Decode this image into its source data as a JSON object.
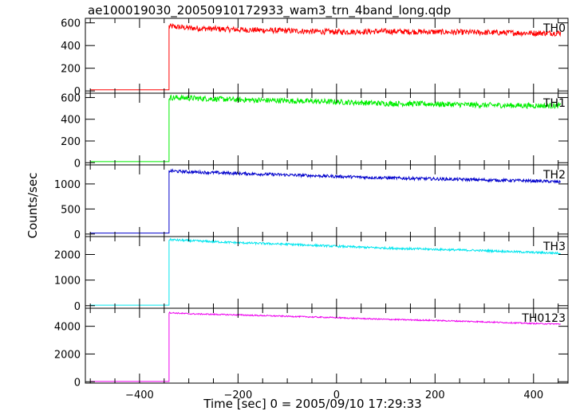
{
  "chart_data": {
    "type": "line",
    "title": "ae100019030_20050910172933_wam3_trn_4band_long.qdp",
    "xlabel": "Time [sec] 0 = 2005/09/10 17:29:33",
    "ylabel": "Counts/sec",
    "xlim": [
      -510,
      470
    ],
    "xticks": [
      -400,
      -200,
      0,
      200,
      400
    ],
    "xtick_labels": [
      "−400",
      "−200",
      "0",
      "200",
      "400"
    ],
    "grid": false,
    "onset_time": -340,
    "data_end_time": 455,
    "panels": [
      {
        "name": "TH0",
        "color": "#ff0000",
        "ylim": [
          -20,
          640
        ],
        "yticks": [
          0,
          200,
          400,
          600
        ],
        "baseline": 10,
        "x": [
          -340,
          -300,
          -200,
          -100,
          0,
          100,
          200,
          300,
          400,
          455
        ],
        "y": [
          570,
          555,
          540,
          530,
          520,
          525,
          520,
          515,
          510,
          510
        ],
        "noise": 25
      },
      {
        "name": "TH1",
        "color": "#00ee00",
        "ylim": [
          -20,
          640
        ],
        "yticks": [
          0,
          200,
          400,
          600
        ],
        "baseline": 10,
        "x": [
          -340,
          -300,
          -200,
          -100,
          0,
          100,
          200,
          300,
          400,
          455
        ],
        "y": [
          600,
          595,
          580,
          570,
          560,
          545,
          540,
          530,
          525,
          525
        ],
        "noise": 25
      },
      {
        "name": "TH2",
        "color": "#0000cc",
        "ylim": [
          -50,
          1380
        ],
        "yticks": [
          0,
          500,
          1000
        ],
        "baseline": 20,
        "x": [
          -340,
          -300,
          -200,
          -100,
          0,
          100,
          200,
          300,
          400,
          455
        ],
        "y": [
          1260,
          1240,
          1210,
          1180,
          1150,
          1120,
          1100,
          1080,
          1060,
          1040
        ],
        "noise": 30
      },
      {
        "name": "TH3",
        "color": "#00e5ee",
        "ylim": [
          -100,
          2700
        ],
        "yticks": [
          0,
          1000,
          2000
        ],
        "baseline": 20,
        "x": [
          -340,
          -300,
          -200,
          -100,
          0,
          100,
          200,
          300,
          400,
          455
        ],
        "y": [
          2580,
          2540,
          2460,
          2400,
          2320,
          2250,
          2200,
          2150,
          2080,
          2050
        ],
        "noise": 40
      },
      {
        "name": "TH0123",
        "color": "#ee00ee",
        "ylim": [
          -100,
          5300
        ],
        "yticks": [
          0,
          2000,
          4000
        ],
        "baseline": 20,
        "x": [
          -340,
          -300,
          -200,
          -100,
          0,
          100,
          200,
          300,
          400,
          455
        ],
        "y": [
          4980,
          4900,
          4820,
          4720,
          4620,
          4500,
          4420,
          4320,
          4200,
          4160
        ],
        "noise": 45
      }
    ]
  }
}
